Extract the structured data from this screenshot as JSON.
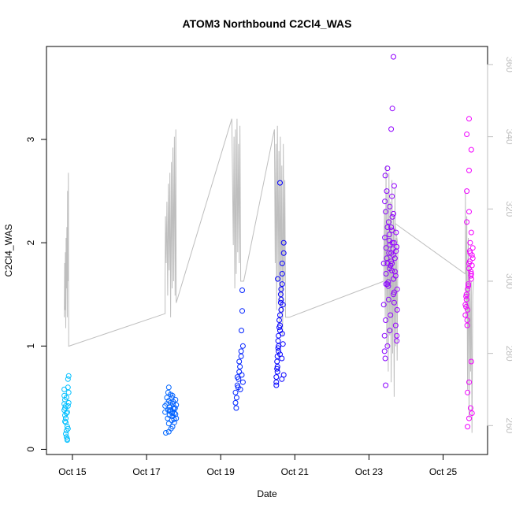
{
  "chart_data": {
    "type": "scatter",
    "title": "ATOM3 Northbound C2Cl4_WAS",
    "xlabel": "Date",
    "ylabel": "C2Cl4_WAS",
    "x_ticks": [
      "Oct 15",
      "Oct 17",
      "Oct 19",
      "Oct 21",
      "Oct 23",
      "Oct 25"
    ],
    "x_tick_days": [
      15,
      17,
      19,
      21,
      23,
      25
    ],
    "xlim_days": [
      14.3,
      26.2
    ],
    "ylim": [
      -0.05,
      3.9
    ],
    "y_ticks": [
      0,
      1,
      2,
      3
    ],
    "y2lim": [
      252,
      365
    ],
    "y2_ticks": [
      260,
      280,
      300,
      320,
      340,
      360
    ],
    "grid": false,
    "colors": {
      "axis": "#000000",
      "line": "#bebebe",
      "right_axis": "#bebebe",
      "point_gradient": [
        "#00bfff",
        "#0000ff",
        "#ff00ff"
      ]
    },
    "series": [
      {
        "x_days": [
          14.78,
          14.8,
          14.82,
          14.84,
          14.86,
          14.88,
          14.9,
          14.78,
          14.8,
          14.82,
          14.84,
          14.86,
          14.88,
          14.9,
          14.78,
          14.8,
          14.82,
          14.84,
          14.86,
          14.88,
          14.9,
          14.78,
          14.8,
          14.82,
          14.84,
          14.86,
          14.88
        ],
        "y": [
          0.58,
          0.48,
          0.42,
          0.35,
          0.22,
          0.68,
          0.71,
          0.52,
          0.4,
          0.3,
          0.18,
          0.1,
          0.6,
          0.45,
          0.38,
          0.27,
          0.15,
          0.12,
          0.09,
          0.42,
          0.55,
          0.44,
          0.33,
          0.26,
          0.5,
          0.36,
          0.2
        ]
      },
      {
        "x_days": [
          17.5,
          17.55,
          17.58,
          17.6,
          17.62,
          17.65,
          17.68,
          17.7,
          17.72,
          17.75,
          17.78,
          17.8,
          17.5,
          17.55,
          17.58,
          17.6,
          17.62,
          17.65,
          17.68,
          17.7,
          17.72,
          17.75,
          17.78,
          17.8,
          17.52,
          17.57,
          17.6,
          17.63,
          17.66,
          17.69,
          17.71,
          17.74,
          17.77,
          17.6,
          17.65,
          17.7,
          17.75
        ],
        "y": [
          0.42,
          0.5,
          0.38,
          0.6,
          0.33,
          0.45,
          0.28,
          0.52,
          0.4,
          0.35,
          0.48,
          0.3,
          0.36,
          0.44,
          0.55,
          0.25,
          0.41,
          0.37,
          0.5,
          0.22,
          0.46,
          0.39,
          0.34,
          0.43,
          0.16,
          0.3,
          0.47,
          0.38,
          0.2,
          0.35,
          0.44,
          0.29,
          0.4,
          0.17,
          0.53,
          0.32,
          0.26
        ]
      },
      {
        "x_days": [
          19.4,
          19.45,
          19.5,
          19.55,
          19.6,
          19.4,
          19.45,
          19.5,
          19.55,
          19.6,
          19.42,
          19.47,
          19.52,
          19.57,
          19.43,
          19.48,
          19.53,
          19.58,
          19.56,
          19.58
        ],
        "y": [
          0.45,
          0.62,
          0.75,
          0.9,
          1.0,
          0.55,
          0.7,
          0.85,
          0.95,
          0.65,
          0.4,
          0.6,
          0.8,
          0.72,
          0.5,
          0.68,
          0.58,
          1.34,
          1.15,
          1.54
        ]
      },
      {
        "x_days": [
          20.5,
          20.53,
          20.56,
          20.6,
          20.63,
          20.66,
          20.7,
          20.5,
          20.53,
          20.56,
          20.6,
          20.63,
          20.66,
          20.7,
          20.5,
          20.53,
          20.56,
          20.6,
          20.63,
          20.66,
          20.7,
          20.52,
          20.55,
          20.58,
          20.62,
          20.65,
          20.68,
          20.52,
          20.55,
          20.58,
          20.62,
          20.65,
          20.68,
          20.54,
          20.6,
          20.66,
          20.6
        ],
        "y": [
          0.65,
          0.8,
          1.0,
          1.2,
          1.45,
          1.7,
          1.9,
          0.7,
          0.9,
          1.1,
          1.3,
          1.55,
          1.8,
          2.0,
          0.62,
          0.75,
          0.95,
          1.15,
          1.35,
          1.6,
          0.72,
          0.85,
          1.05,
          1.25,
          1.5,
          0.68,
          1.4,
          0.78,
          0.98,
          1.18,
          1.42,
          0.88,
          1.02,
          1.65,
          0.92,
          1.12,
          2.58
        ]
      },
      {
        "x_days": [
          23.4,
          23.43,
          23.46,
          23.5,
          23.53,
          23.56,
          23.6,
          23.63,
          23.66,
          23.7,
          23.73,
          23.76,
          23.4,
          23.43,
          23.46,
          23.5,
          23.53,
          23.56,
          23.6,
          23.63,
          23.66,
          23.7,
          23.73,
          23.76,
          23.42,
          23.45,
          23.48,
          23.52,
          23.55,
          23.58,
          23.62,
          23.65,
          23.68,
          23.72,
          23.75,
          23.42,
          23.45,
          23.48,
          23.52,
          23.55,
          23.58,
          23.62,
          23.65,
          23.68,
          23.72,
          23.75,
          23.44,
          23.5,
          23.56,
          23.62,
          23.68,
          23.44,
          23.5,
          23.56,
          23.62,
          23.68,
          23.46,
          23.54,
          23.6,
          23.66,
          23.6,
          23.63,
          23.66,
          23.5,
          23.75,
          23.45
        ],
        "y": [
          1.8,
          2.05,
          1.95,
          1.6,
          2.2,
          1.75,
          1.9,
          2.0,
          1.65,
          1.85,
          2.1,
          1.55,
          1.4,
          2.4,
          1.7,
          2.15,
          1.45,
          1.98,
          1.82,
          2.25,
          1.5,
          1.72,
          1.92,
          1.35,
          1.1,
          2.3,
          1.85,
          1.62,
          2.02,
          1.78,
          2.12,
          1.88,
          1.52,
          1.68,
          1.96,
          0.95,
          1.25,
          2.5,
          1.58,
          2.08,
          1.3,
          1.73,
          1.94,
          1.42,
          1.2,
          1.05,
          2.65,
          2.72,
          1.15,
          2.45,
          2.55,
          0.88,
          1.0,
          2.35,
          1.8,
          2.0,
          1.6,
          1.9,
          2.15,
          2.28,
          3.1,
          3.3,
          3.8,
          1.8,
          1.1,
          0.62
        ]
      },
      {
        "x_days": [
          25.6,
          25.63,
          25.66,
          25.7,
          25.73,
          25.76,
          25.8,
          25.6,
          25.63,
          25.66,
          25.7,
          25.73,
          25.76,
          25.8,
          25.62,
          25.65,
          25.68,
          25.72,
          25.75,
          25.78,
          25.62,
          25.65,
          25.68,
          25.72,
          25.75,
          25.78,
          25.64,
          25.7,
          25.76,
          25.64,
          25.7,
          25.76,
          25.64,
          25.7,
          25.76,
          25.66,
          25.7,
          25.74,
          25.78,
          25.66,
          25.7
        ],
        "y": [
          1.4,
          1.5,
          1.35,
          1.8,
          1.9,
          1.7,
          1.85,
          1.3,
          1.45,
          1.55,
          1.75,
          2.0,
          1.65,
          1.95,
          1.38,
          1.2,
          1.6,
          1.82,
          1.72,
          1.88,
          1.48,
          1.25,
          1.58,
          1.92,
          1.68,
          1.78,
          2.2,
          2.3,
          2.1,
          2.5,
          2.7,
          2.9,
          3.05,
          3.2,
          0.85,
          0.55,
          0.65,
          0.4,
          0.35,
          0.22,
          0.3
        ]
      }
    ],
    "right_axis_line": {
      "points": [
        [
          14.78,
          290
        ],
        [
          14.79,
          305
        ],
        [
          14.8,
          292
        ],
        [
          14.81,
          308
        ],
        [
          14.82,
          287
        ],
        [
          14.83,
          312
        ],
        [
          14.84,
          298
        ],
        [
          14.85,
          315
        ],
        [
          14.86,
          290
        ],
        [
          14.87,
          325
        ],
        [
          14.88,
          300
        ],
        [
          14.89,
          330
        ],
        [
          14.9,
          282
        ],
        [
          17.5,
          291
        ],
        [
          17.5,
          300
        ],
        [
          17.51,
          318
        ],
        [
          17.53,
          305
        ],
        [
          17.55,
          322
        ],
        [
          17.57,
          296
        ],
        [
          17.59,
          327
        ],
        [
          17.61,
          303
        ],
        [
          17.63,
          330
        ],
        [
          17.65,
          290
        ],
        [
          17.67,
          333
        ],
        [
          17.69,
          298
        ],
        [
          17.71,
          337
        ],
        [
          17.73,
          300
        ],
        [
          17.75,
          340
        ],
        [
          17.77,
          296
        ],
        [
          17.79,
          342
        ],
        [
          17.8,
          294
        ],
        [
          19.3,
          345
        ],
        [
          19.34,
          310
        ],
        [
          19.36,
          340
        ],
        [
          19.38,
          298
        ],
        [
          19.4,
          342
        ],
        [
          19.42,
          302
        ],
        [
          19.44,
          345
        ],
        [
          19.46,
          308
        ],
        [
          19.48,
          338
        ],
        [
          19.5,
          305
        ],
        [
          19.52,
          343
        ],
        [
          19.54,
          300
        ],
        [
          19.62,
          300
        ],
        [
          20.45,
          342
        ],
        [
          20.47,
          305
        ],
        [
          20.49,
          338
        ],
        [
          20.51,
          292
        ],
        [
          20.53,
          343
        ],
        [
          20.55,
          300
        ],
        [
          20.57,
          336
        ],
        [
          20.59,
          288
        ],
        [
          20.61,
          340
        ],
        [
          20.63,
          296
        ],
        [
          20.65,
          332
        ],
        [
          20.67,
          285
        ],
        [
          20.69,
          338
        ],
        [
          20.71,
          300
        ],
        [
          20.73,
          328
        ],
        [
          20.75,
          290
        ],
        [
          20.85,
          290
        ],
        [
          23.4,
          300
        ],
        [
          23.4,
          305
        ],
        [
          23.42,
          320
        ],
        [
          23.44,
          290
        ],
        [
          23.46,
          332
        ],
        [
          23.48,
          282
        ],
        [
          23.5,
          325
        ],
        [
          23.52,
          275
        ],
        [
          23.54,
          330
        ],
        [
          23.56,
          285
        ],
        [
          23.58,
          322
        ],
        [
          23.6,
          272
        ],
        [
          23.62,
          328
        ],
        [
          23.64,
          280
        ],
        [
          23.66,
          318
        ],
        [
          23.68,
          268
        ],
        [
          23.7,
          326
        ],
        [
          23.72,
          282
        ],
        [
          23.74,
          312
        ],
        [
          23.76,
          278
        ],
        [
          23.78,
          310
        ],
        [
          23.7,
          316
        ],
        [
          25.6,
          302
        ],
        [
          25.6,
          325
        ],
        [
          25.62,
          290
        ],
        [
          25.64,
          318
        ],
        [
          25.66,
          270
        ],
        [
          25.68,
          312
        ],
        [
          25.7,
          262
        ],
        [
          25.72,
          305
        ],
        [
          25.74,
          275
        ],
        [
          25.76,
          300
        ],
        [
          25.78,
          258
        ],
        [
          25.8,
          296
        ],
        [
          25.82,
          300
        ]
      ]
    }
  }
}
